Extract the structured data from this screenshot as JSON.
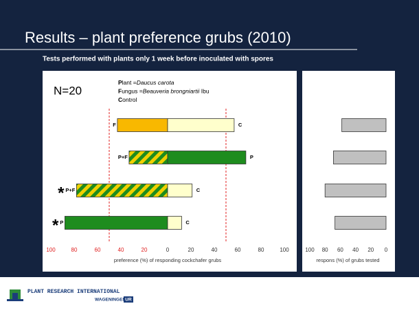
{
  "slide": {
    "title": "Results – plant preference grubs (2010)",
    "subtitle": "Tests performed with plants only 1 week before inoculated with spores",
    "sample": "N=20",
    "legend": [
      {
        "bold": "P",
        "text": "lant =",
        "italic": "Daucus carota"
      },
      {
        "bold": "F",
        "text": "ungus =",
        "italic": "Beauveria brongniartii",
        "tail": " Ibu"
      },
      {
        "bold": "C",
        "text": "ontrol"
      }
    ],
    "footer": {
      "organization": "PLANT RESEARCH INTERNATIONAL",
      "university": "WAGENINGEN",
      "ur": "UR"
    }
  },
  "chart_data": [
    {
      "type": "diverging_bar",
      "xlabel": "preference (%) of responding cockchafer grubs",
      "xlim": [
        -100,
        100
      ],
      "xticks": [
        {
          "value": -100,
          "label": "100"
        },
        {
          "value": -80,
          "label": "80"
        },
        {
          "value": -60,
          "label": "60"
        },
        {
          "value": -40,
          "label": "40"
        },
        {
          "value": -20,
          "label": "20"
        },
        0,
        20,
        40,
        60,
        80,
        100
      ],
      "negative_tick_color": "#e02020",
      "reference_lines": [
        -50,
        50
      ],
      "reference_line_color": "#e02020",
      "significance_mark": "*",
      "styles": {
        "orange": {
          "fill": "#f8b800"
        },
        "cream": {
          "fill": "#ffffcc"
        },
        "green": {
          "fill": "#1e8c1e"
        },
        "hatched": {
          "fill": "#1e8c1e",
          "stripe": "#f0d000"
        }
      },
      "rows": [
        {
          "left_label": "F",
          "left": -43,
          "left_style": "orange",
          "right_label": "C",
          "right": 57,
          "right_style": "cream",
          "significant": false
        },
        {
          "left_label": "P+F",
          "left": -33,
          "left_style": "hatched",
          "right_label": "P",
          "right": 67,
          "right_style": "green",
          "significant": false
        },
        {
          "left_label": "P+F",
          "left": -78,
          "left_style": "hatched",
          "right_label": "C",
          "right": 21,
          "right_style": "cream",
          "significant": true
        },
        {
          "left_label": "P",
          "left": -88,
          "left_style": "green",
          "right_label": "C",
          "right": 12,
          "right_style": "cream",
          "significant": true
        }
      ]
    },
    {
      "type": "bar",
      "xlabel": "respons (%) of grubs tested",
      "xlim": [
        100,
        0
      ],
      "xticks": [
        100,
        80,
        60,
        40,
        20,
        0
      ],
      "color": "#c0c0c0",
      "values": [
        58,
        69,
        80,
        67
      ]
    }
  ]
}
